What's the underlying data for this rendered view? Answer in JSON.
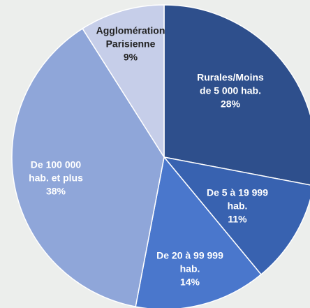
{
  "chart_data": {
    "type": "pie",
    "categories": [
      "Rurales/Moins de 5 000 hab.",
      "De 5 à 19 999 hab.",
      "De 20 à 99 999 hab.",
      "De 100 000 hab. et plus",
      "Agglomération Parisienne"
    ],
    "values": [
      28,
      11,
      14,
      38,
      9
    ],
    "value_labels": [
      "28%",
      "11%",
      "14%",
      "38%",
      "9%"
    ],
    "colors": [
      "#2e4f8c",
      "#3862b0",
      "#4a77cc",
      "#8fa6d9",
      "#c6cee9"
    ]
  }
}
